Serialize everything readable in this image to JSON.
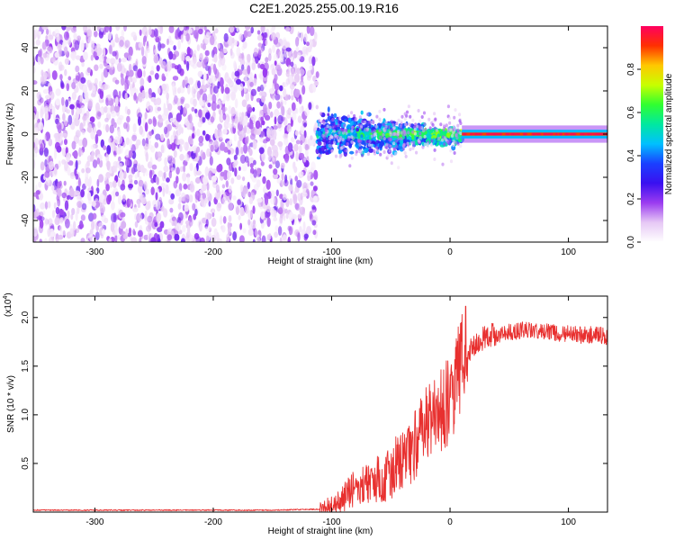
{
  "title": "C2E1.2025.255.00.19.R16",
  "colors": {
    "snr_line": "#e8302f",
    "spectrum_purple": "#6a1fe0",
    "colorbar_stops": [
      "#ffffff",
      "#e6c8f5",
      "#9b3cf0",
      "#3a10f0",
      "#1a40ff",
      "#00c0ff",
      "#00e8a0",
      "#30ff30",
      "#c8ff00",
      "#ffc800",
      "#ff3000",
      "#ff0060"
    ]
  },
  "chart_data": [
    {
      "type": "heatmap",
      "xlabel": "Height of straight line (km)",
      "ylabel": "Frequency (Hz)",
      "xlim": [
        -352,
        133
      ],
      "ylim": [
        -50,
        50
      ],
      "x_ticks": [
        -300,
        -200,
        -100,
        0,
        100
      ],
      "x_tick_labels": [
        "-300",
        "-200",
        "-100",
        "0",
        "100"
      ],
      "y_ticks": [
        -40,
        -20,
        0,
        20,
        40
      ],
      "y_tick_labels": [
        "-40",
        "-20",
        "0",
        "20",
        "40"
      ],
      "colorbar": {
        "label": "Normalized spectral amplitude",
        "range": [
          0,
          1
        ],
        "ticks": [
          0.0,
          0.2,
          0.4,
          0.6,
          0.8
        ],
        "tick_labels": [
          "0.0",
          "0.2",
          "0.4",
          "0.6",
          "0.8"
        ]
      },
      "regions": [
        {
          "x_range": [
            -352,
            -112
          ],
          "freq_range": [
            -50,
            50
          ],
          "amplitude_range": [
            0.0,
            0.2
          ],
          "pattern": "broadband noise"
        },
        {
          "x_range": [
            -112,
            10
          ],
          "freq_range": [
            -12,
            12
          ],
          "amplitude_range": [
            0.2,
            0.6
          ],
          "pattern": "narrowing band"
        },
        {
          "x_range": [
            10,
            133
          ],
          "freq_range": [
            -2,
            2
          ],
          "amplitude_range": [
            0.6,
            1.0
          ],
          "pattern": "narrow line at 0 Hz"
        }
      ]
    },
    {
      "type": "line",
      "xlabel": "Height of straight line (km)",
      "ylabel": "SNR (10 * v/v)",
      "y_multiplier_label": "(x10",
      "y_multiplier_exponent": "4",
      "xlim": [
        -352,
        133
      ],
      "ylim": [
        0,
        2.22
      ],
      "x_ticks": [
        -300,
        -200,
        -100,
        0,
        100
      ],
      "x_tick_labels": [
        "-300",
        "-200",
        "-100",
        "0",
        "100"
      ],
      "y_ticks": [
        0.5,
        1.0,
        1.5,
        2.0
      ],
      "y_tick_labels": [
        "0.5",
        "1.0",
        "1.5",
        "2.0"
      ],
      "series": [
        {
          "x": [
            -352,
            -300,
            -250,
            -200,
            -150,
            -110,
            -100,
            -95,
            -90,
            -85,
            -80,
            -75,
            -70,
            -65,
            -60,
            -55,
            -50,
            -45,
            -40,
            -35,
            -30,
            -25,
            -20,
            -15,
            -10,
            -5,
            0,
            5,
            10,
            15,
            20,
            25,
            30,
            35,
            40,
            45,
            50,
            55,
            60,
            65,
            70,
            75,
            80,
            85,
            90,
            95,
            100,
            105,
            110,
            115,
            120,
            125,
            133
          ],
          "y": [
            0.02,
            0.02,
            0.02,
            0.02,
            0.02,
            0.03,
            0.05,
            0.1,
            0.15,
            0.2,
            0.25,
            0.28,
            0.3,
            0.32,
            0.35,
            0.38,
            0.42,
            0.48,
            0.55,
            0.62,
            0.7,
            0.78,
            0.9,
            1.0,
            1.05,
            1.1,
            1.15,
            1.35,
            1.55,
            1.65,
            1.72,
            1.76,
            1.8,
            1.82,
            1.83,
            1.84,
            1.85,
            1.86,
            1.87,
            1.87,
            1.86,
            1.86,
            1.85,
            1.85,
            1.84,
            1.84,
            1.83,
            1.83,
            1.82,
            1.82,
            1.82,
            1.82,
            1.81
          ]
        }
      ]
    }
  ]
}
